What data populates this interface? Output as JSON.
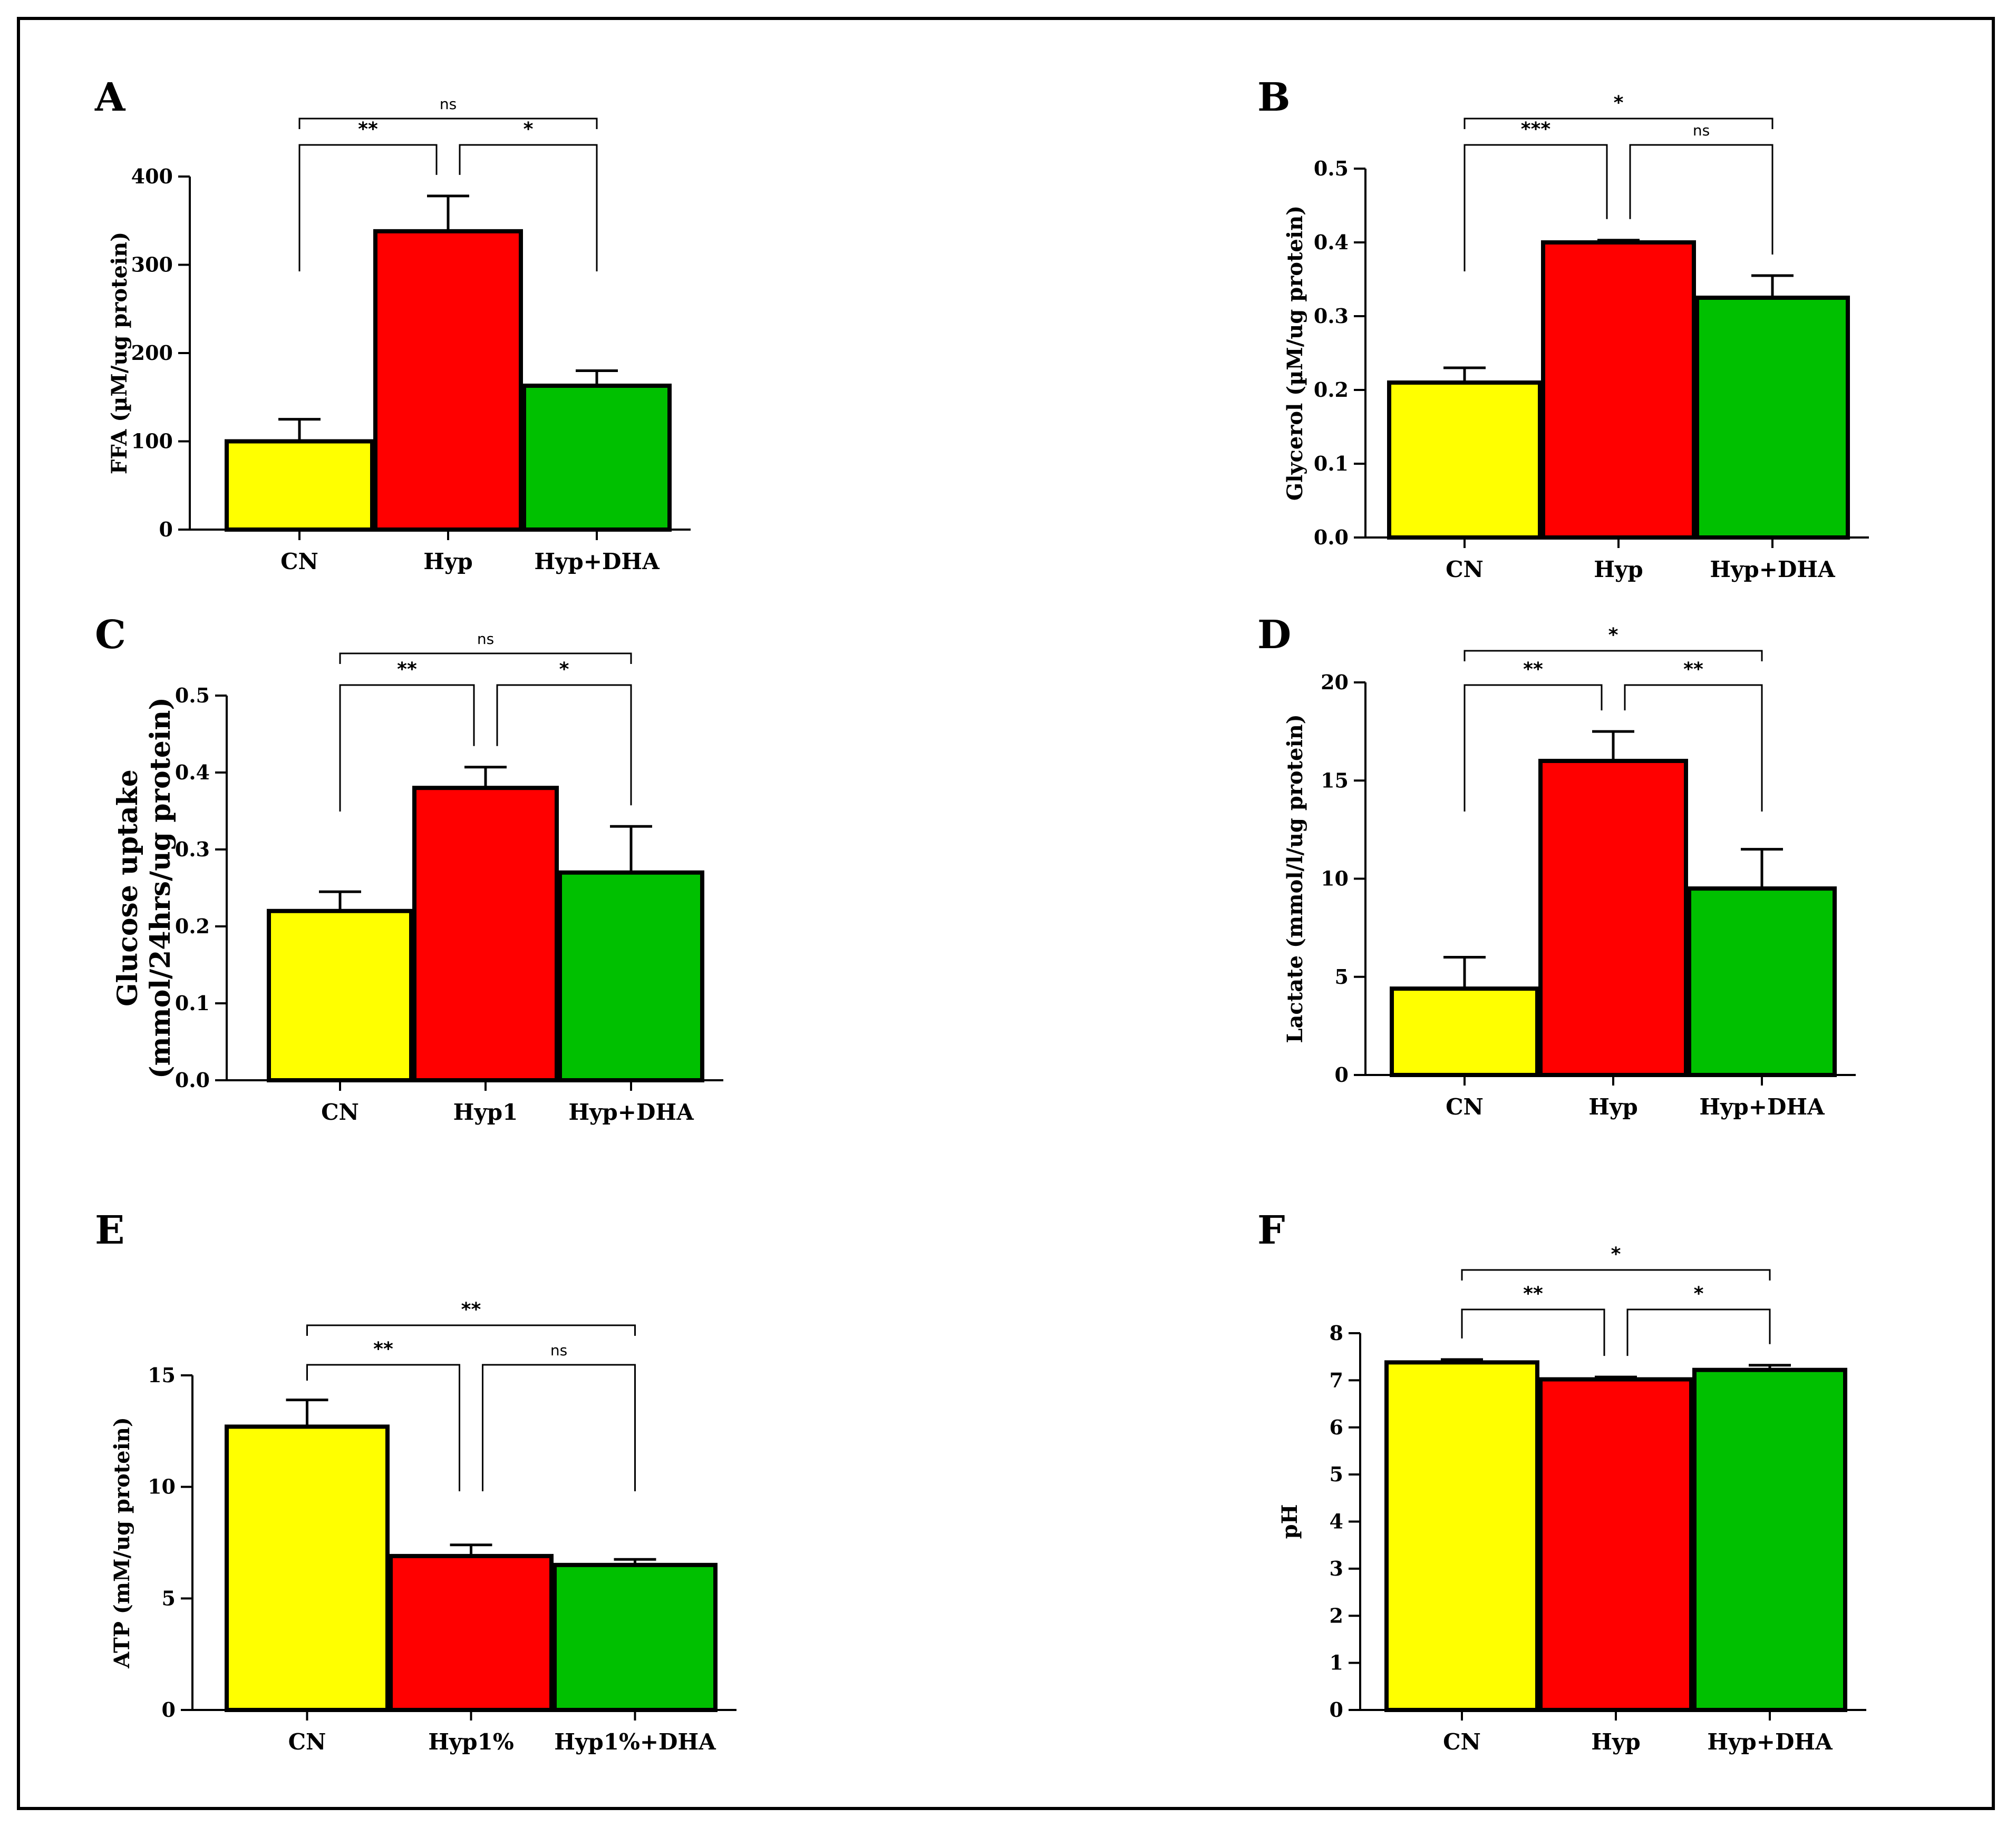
{
  "colors": {
    "CN": "#ffff00",
    "Hyp": "#ff0000",
    "HypDHA": "#00c000",
    "ink": "#000000"
  },
  "chart_data": [
    {
      "panel": "A",
      "type": "bar",
      "ylabel": "FFA (µM/ug protein)",
      "categories": [
        "CN",
        "Hyp",
        "Hyp+DHA"
      ],
      "values": [
        100,
        338,
        163
      ],
      "errors": [
        25,
        40,
        17
      ],
      "ylim": [
        0,
        400
      ],
      "yticks": [
        0,
        100,
        200,
        300,
        400
      ],
      "decimals": 0,
      "brackets": [
        {
          "from": 0,
          "to": 1,
          "label": "**",
          "level": 0
        },
        {
          "from": 1,
          "to": 2,
          "label": "*",
          "level": 0
        },
        {
          "from": 0,
          "to": 2,
          "label": "ns",
          "level": 1
        }
      ]
    },
    {
      "panel": "B",
      "type": "bar",
      "ylabel": "Glycerol (µM/ug protein)",
      "categories": [
        "CN",
        "Hyp",
        "Hyp+DHA"
      ],
      "values": [
        0.21,
        0.4,
        0.325
      ],
      "errors": [
        0.02,
        0.003,
        0.03
      ],
      "ylim": [
        0,
        0.5
      ],
      "yticks": [
        0.0,
        0.1,
        0.2,
        0.3,
        0.4,
        0.5
      ],
      "decimals": 1,
      "brackets": [
        {
          "from": 0,
          "to": 1,
          "label": "***",
          "level": 0
        },
        {
          "from": 1,
          "to": 2,
          "label": "ns",
          "level": 0
        },
        {
          "from": 0,
          "to": 2,
          "label": "*",
          "level": 1
        }
      ]
    },
    {
      "panel": "C",
      "type": "bar",
      "ylabel_lines": [
        "Glucose uptake",
        "(mmol/24hrs/ug protein)"
      ],
      "categories": [
        "CN",
        "Hyp1",
        "Hyp+DHA"
      ],
      "values": [
        0.22,
        0.38,
        0.27
      ],
      "errors": [
        0.025,
        0.027,
        0.06
      ],
      "ylim": [
        0,
        0.5
      ],
      "yticks": [
        0.0,
        0.1,
        0.2,
        0.3,
        0.4,
        0.5
      ],
      "decimals": 1,
      "brackets": [
        {
          "from": 0,
          "to": 1,
          "label": "**",
          "level": 0
        },
        {
          "from": 1,
          "to": 2,
          "label": "*",
          "level": 0
        },
        {
          "from": 0,
          "to": 2,
          "label": "ns",
          "level": 1
        }
      ]
    },
    {
      "panel": "D",
      "type": "bar",
      "ylabel": "Lactate (mmol/l/ug protein)",
      "categories": [
        "CN",
        "Hyp",
        "Hyp+DHA"
      ],
      "values": [
        4.4,
        16.0,
        9.5
      ],
      "errors": [
        1.6,
        1.5,
        2.0
      ],
      "ylim": [
        0,
        20
      ],
      "yticks": [
        0,
        5,
        10,
        15,
        20
      ],
      "decimals": 0,
      "brackets": [
        {
          "from": 0,
          "to": 1,
          "label": "**",
          "level": 0
        },
        {
          "from": 1,
          "to": 2,
          "label": "**",
          "level": 0
        },
        {
          "from": 0,
          "to": 2,
          "label": "*",
          "level": 1
        }
      ]
    },
    {
      "panel": "E",
      "type": "bar",
      "ylabel": "ATP (mM/ug protein)",
      "categories": [
        "CN",
        "Hyp1%",
        "Hyp1%+DHA"
      ],
      "values": [
        12.7,
        6.9,
        6.5
      ],
      "errors": [
        1.2,
        0.5,
        0.25
      ],
      "ylim": [
        0,
        15
      ],
      "yticks": [
        0,
        5,
        10,
        15
      ],
      "decimals": 0,
      "brackets": [
        {
          "from": 0,
          "to": 1,
          "label": "**",
          "level": 0
        },
        {
          "from": 1,
          "to": 2,
          "label": "ns",
          "level": 0
        },
        {
          "from": 0,
          "to": 2,
          "label": "**",
          "level": 1
        }
      ]
    },
    {
      "panel": "F",
      "type": "bar",
      "ylabel": "pH",
      "categories": [
        "CN",
        "Hyp",
        "Hyp+DHA"
      ],
      "values": [
        7.38,
        7.02,
        7.22
      ],
      "errors": [
        0.06,
        0.05,
        0.1
      ],
      "ylim": [
        0,
        8
      ],
      "yticks": [
        0,
        1,
        2,
        3,
        4,
        5,
        6,
        7,
        8
      ],
      "decimals": 0,
      "brackets": [
        {
          "from": 0,
          "to": 1,
          "label": "**",
          "level": 0
        },
        {
          "from": 1,
          "to": 2,
          "label": "*",
          "level": 0
        },
        {
          "from": 0,
          "to": 2,
          "label": "*",
          "level": 1
        }
      ]
    }
  ]
}
